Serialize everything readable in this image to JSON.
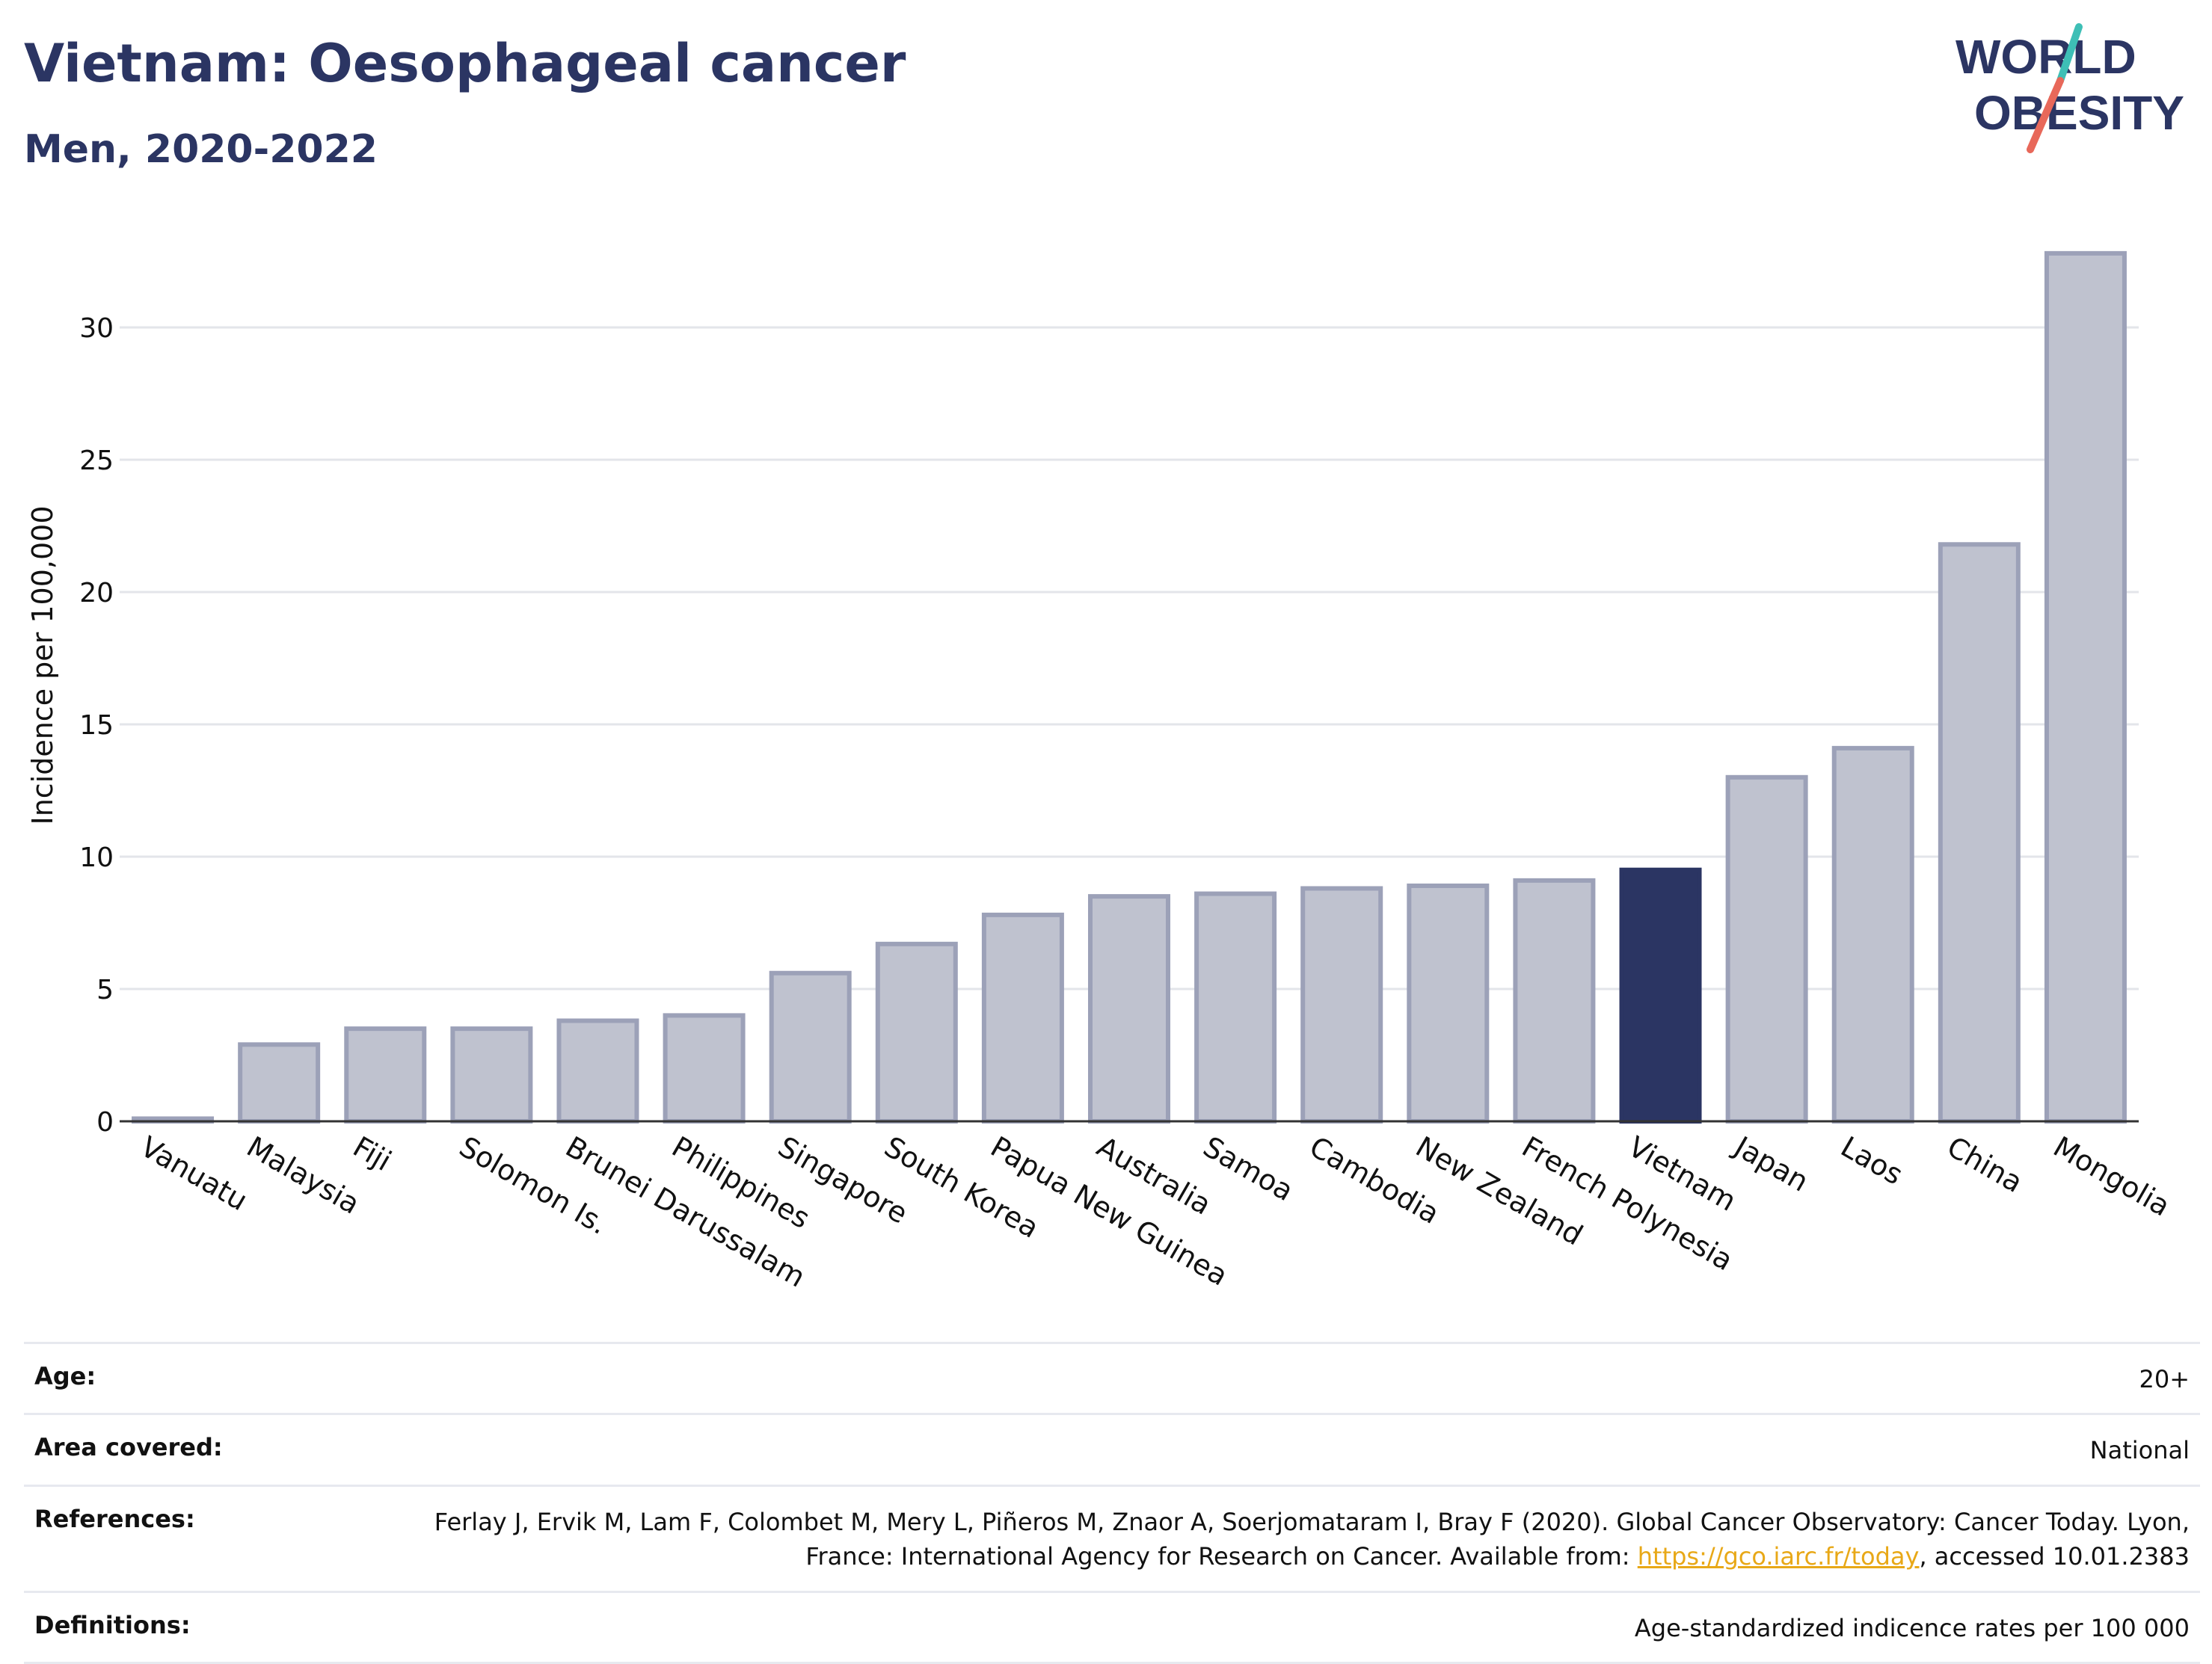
{
  "header": {
    "title": "Vietnam: Oesophageal cancer",
    "subtitle": "Men, 2020-2022"
  },
  "logo": {
    "line1": "WORLD",
    "line2": "OBESITY",
    "accent_teal": "#3ebfb6",
    "accent_red": "#e8685a",
    "text_color": "#2b3563"
  },
  "chart_data": {
    "type": "bar",
    "ylabel": "Incidence per 100,000",
    "ylim": [
      0,
      34
    ],
    "yticks": [
      0,
      5,
      10,
      15,
      20,
      25,
      30
    ],
    "grid": true,
    "highlight": "Vietnam",
    "colors": {
      "highlight": "#2b3563",
      "default": "#bfc2cf",
      "default_edge": "#9ca1b8"
    },
    "categories": [
      "Vanuatu",
      "Malaysia",
      "Fiji",
      "Solomon Is.",
      "Brunei Darussalam",
      "Philippines",
      "Singapore",
      "South Korea",
      "Papua New Guinea",
      "Australia",
      "Samoa",
      "Cambodia",
      "New Zealand",
      "French Polynesia",
      "Vietnam",
      "Japan",
      "Laos",
      "China",
      "Mongolia"
    ],
    "values": [
      0.1,
      2.9,
      3.5,
      3.5,
      3.8,
      4.0,
      5.6,
      6.7,
      7.8,
      8.5,
      8.6,
      8.8,
      8.9,
      9.1,
      9.5,
      13.0,
      14.1,
      21.8,
      32.8
    ]
  },
  "meta": {
    "age": {
      "label": "Age:",
      "value": "20+"
    },
    "area": {
      "label": "Area covered:",
      "value": "National"
    },
    "references": {
      "label": "References:",
      "text1": "Ferlay J, Ervik M, Lam F, Colombet M, Mery L, Piñeros M, Znaor A, Soerjomataram I, Bray F (2020). Global Cancer Observatory: Cancer Today. Lyon, France: International Agency for Research on Cancer. Available from: ",
      "link": "https://gco.iarc.fr/today",
      "text2": ", accessed 10.01.2383"
    },
    "definitions": {
      "label": "Definitions:",
      "value": "Age-standardized indicence rates per 100 000"
    }
  }
}
